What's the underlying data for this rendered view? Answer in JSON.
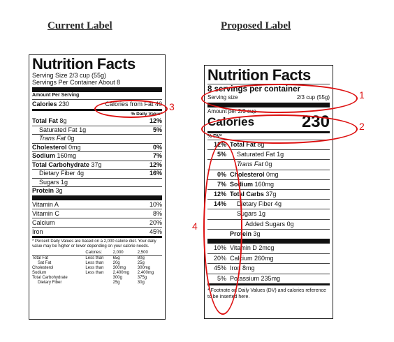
{
  "headings": {
    "current": "Current Label",
    "proposed": "Proposed Label"
  },
  "current": {
    "title": "Nutrition Facts",
    "serving_size": "Serving Size 2/3 cup (55g)",
    "servings_per_container": "Servings Per Container About 8",
    "amount_per_serving": "Amount Per Serving",
    "calories_label": "Calories",
    "calories_value": "230",
    "calories_fat": "Calories from Fat 40",
    "dv_header": "% Daily Value*",
    "nutrients": [
      {
        "name": "Total Fat",
        "amount": "8g",
        "dv": "12%",
        "bold": true,
        "indent": 0
      },
      {
        "name": "Saturated Fat",
        "amount": "1g",
        "dv": "5%",
        "bold": false,
        "indent": 1
      },
      {
        "name": "Trans Fat",
        "amount": "0g",
        "dv": "",
        "bold": false,
        "indent": 1,
        "italic_name": true
      },
      {
        "name": "Cholesterol",
        "amount": "0mg",
        "dv": "0%",
        "bold": true,
        "indent": 0
      },
      {
        "name": "Sodium",
        "amount": "160mg",
        "dv": "7%",
        "bold": true,
        "indent": 0
      },
      {
        "name": "Total Carbohydrate",
        "amount": "37g",
        "dv": "12%",
        "bold": true,
        "indent": 0
      },
      {
        "name": "Dietary Fiber",
        "amount": "4g",
        "dv": "16%",
        "bold": false,
        "indent": 1
      },
      {
        "name": "Sugars",
        "amount": "1g",
        "dv": "",
        "bold": false,
        "indent": 1
      },
      {
        "name": "Protein",
        "amount": "3g",
        "dv": "",
        "bold": true,
        "indent": 0
      }
    ],
    "vitamins": [
      {
        "name": "Vitamin A",
        "dv": "10%"
      },
      {
        "name": "Vitamin C",
        "dv": "8%"
      },
      {
        "name": "Calcium",
        "dv": "20%"
      },
      {
        "name": "Iron",
        "dv": "45%"
      }
    ],
    "footnote": "* Percent Daily Values are based on a 2,000 calorie diet. Your daily value may be higher or lower depending on your calorie needs.",
    "footer_table": {
      "header": [
        "",
        "Calories:",
        "2,000",
        "2,500"
      ],
      "rows": [
        [
          "Total Fat",
          "Less than",
          "65g",
          "80g"
        ],
        [
          "Sat Fat",
          "Less than",
          "20g",
          "25g"
        ],
        [
          "Cholesterol",
          "Less than",
          "300mg",
          "300mg"
        ],
        [
          "Sodium",
          "Less than",
          "2,400mg",
          "2,400mg"
        ],
        [
          "Total Carbohydrate",
          "",
          "300g",
          "375g"
        ],
        [
          "Dietary Fiber",
          "",
          "25g",
          "30g"
        ]
      ]
    }
  },
  "proposed": {
    "title": "Nutrition Facts",
    "servings_per_container": "8 servings per container",
    "serving_size_label": "Serving size",
    "serving_size_value": "2/3 cup (55g)",
    "amount_per": "Amount per 2/3 cup",
    "calories_label": "Calories",
    "calories_value": "230",
    "dv_header": "% DV*",
    "nutrients": [
      {
        "dv": "12%",
        "name": "Total Fat",
        "amount": "8g",
        "bold": true,
        "indent": 0
      },
      {
        "dv": "5%",
        "name": "Saturated Fat",
        "amount": "1g",
        "bold": false,
        "indent": 1
      },
      {
        "dv": "",
        "name": "Trans Fat",
        "amount": "0g",
        "bold": false,
        "indent": 1,
        "italic_name": true
      },
      {
        "dv": "0%",
        "name": "Cholesterol",
        "amount": "0mg",
        "bold": true,
        "indent": 0
      },
      {
        "dv": "7%",
        "name": "Sodium",
        "amount": "160mg",
        "bold": true,
        "indent": 0
      },
      {
        "dv": "12%",
        "name": "Total Carbs",
        "amount": "37g",
        "bold": true,
        "indent": 0
      },
      {
        "dv": "14%",
        "name": "Dietary Fiber",
        "amount": "4g",
        "bold": false,
        "indent": 1
      },
      {
        "dv": "",
        "name": "Sugars",
        "amount": "1g",
        "bold": false,
        "indent": 1
      },
      {
        "dv": "",
        "name": "Added Sugars",
        "amount": "0g",
        "bold": false,
        "indent": 2
      },
      {
        "dv": "",
        "name": "Protein",
        "amount": "3g",
        "bold": true,
        "indent": 0
      }
    ],
    "vitamins": [
      {
        "dv": "10%",
        "name": "Vitamin D",
        "amount": "2mcg"
      },
      {
        "dv": "20%",
        "name": "Calcium",
        "amount": "260mg"
      },
      {
        "dv": "45%",
        "name": "Iron",
        "amount": "8mg"
      },
      {
        "dv": "5%",
        "name": "Potassium",
        "amount": "235mg"
      }
    ],
    "footnote": "* Footnote on Daily Values (DV) and calories reference to be inserted here."
  },
  "callouts": [
    "1",
    "2",
    "3",
    "4"
  ],
  "colors": {
    "callout": "#dd1111"
  }
}
